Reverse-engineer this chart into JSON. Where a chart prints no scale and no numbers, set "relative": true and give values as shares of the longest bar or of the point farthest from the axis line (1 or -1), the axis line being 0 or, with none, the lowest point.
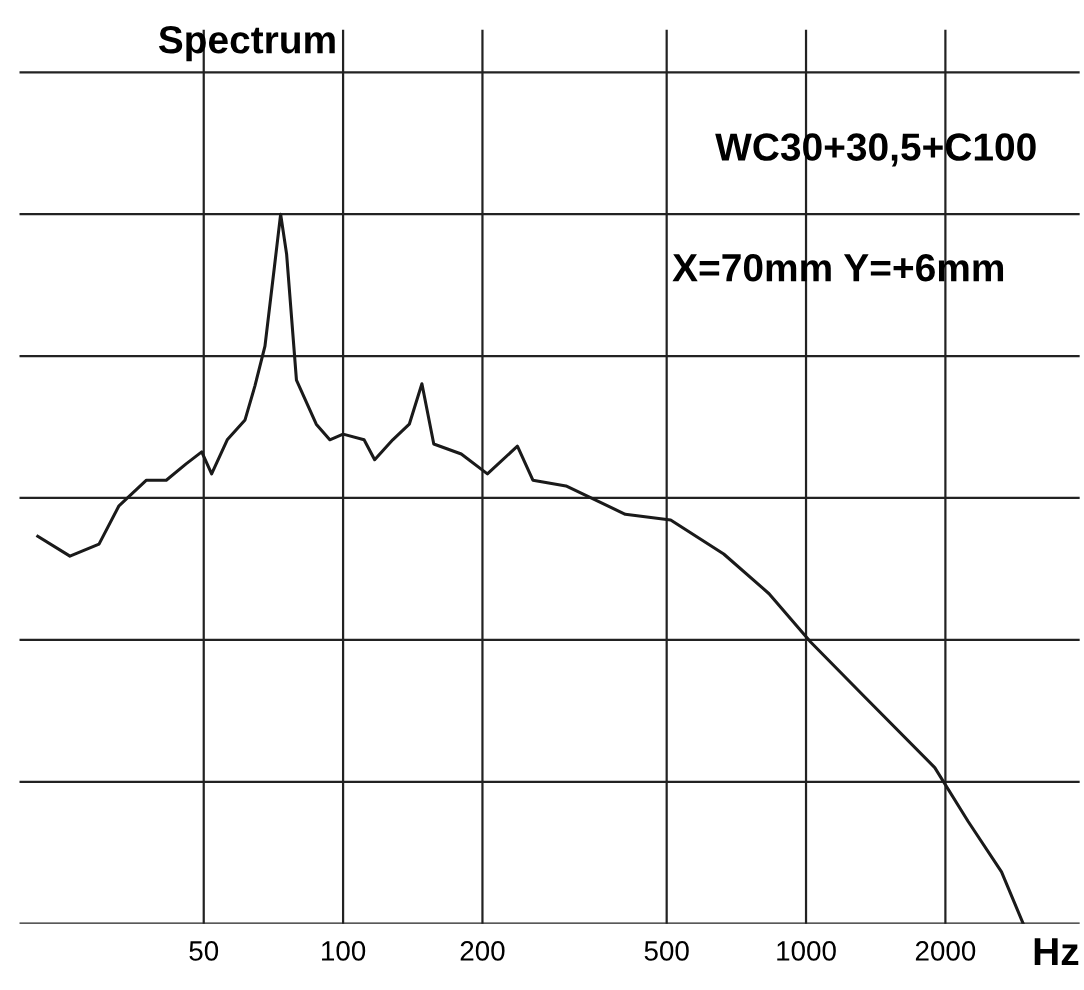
{
  "chart_data": {
    "type": "line",
    "title": "Spectrum",
    "xlabel": "Hz",
    "relative": true,
    "log": "x",
    "annotations": [
      "WC30+30,5+C100",
      "X=70mm Y=+6mm"
    ],
    "xlim": [
      20,
      3900
    ],
    "xticks": [
      50,
      100,
      200,
      500,
      1000,
      2000
    ],
    "grid": true,
    "legend": false,
    "marker": "none",
    "line_style": "solid",
    "series": [
      {
        "color": "#1a1a1a",
        "x": [
          21.9,
          25.7,
          29.7,
          32.8,
          37.6,
          41.5,
          45.8,
          49.5,
          52,
          56.2,
          61.4,
          64.5,
          67.8,
          71.1,
          73.3,
          75.5,
          79.3,
          87.5,
          93.6,
          100,
          111,
          117,
          128,
          139,
          148,
          157,
          180,
          205,
          238,
          257,
          303,
          407,
          510,
          664,
          832,
          1023,
          1346,
          1897,
          2240,
          2644,
          2945
        ],
        "values": [
          0.546,
          0.518,
          0.535,
          0.589,
          0.625,
          0.625,
          0.648,
          0.665,
          0.634,
          0.682,
          0.71,
          0.758,
          0.814,
          0.927,
          1.0,
          0.944,
          0.766,
          0.704,
          0.682,
          0.69,
          0.682,
          0.654,
          0.682,
          0.704,
          0.761,
          0.676,
          0.662,
          0.634,
          0.673,
          0.625,
          0.617,
          0.577,
          0.569,
          0.521,
          0.465,
          0.397,
          0.318,
          0.22,
          0.144,
          0.073,
          0.0
        ]
      }
    ]
  }
}
